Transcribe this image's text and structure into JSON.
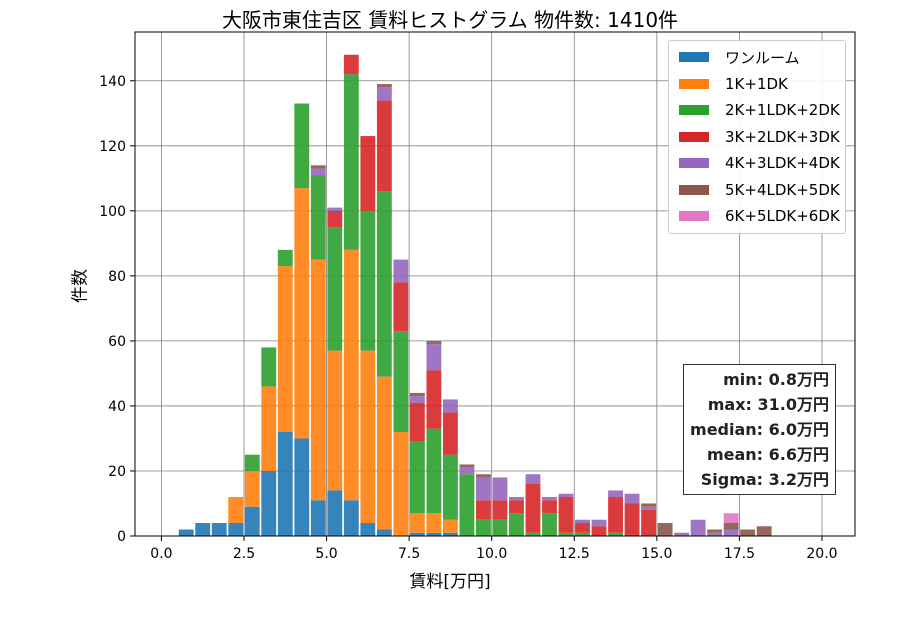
{
  "chart_data": {
    "type": "bar",
    "stacked": true,
    "title": "大阪市東住吉区 賃料ヒストグラム  物件数: 1410件",
    "xlabel": "賃料[万円]",
    "ylabel": "件数",
    "xlim": [
      -0.8,
      21.0
    ],
    "ylim": [
      0,
      155
    ],
    "xticks": [
      "0.0",
      "2.5",
      "5.0",
      "7.5",
      "10.0",
      "12.5",
      "15.0",
      "17.5",
      "20.0"
    ],
    "yticks": [
      "0",
      "20",
      "40",
      "60",
      "80",
      "100",
      "120",
      "140"
    ],
    "grid": true,
    "legend_placement": "top-right",
    "bin_width": 0.5,
    "bin_starts": [
      0.5,
      1.0,
      1.5,
      2.0,
      2.5,
      3.0,
      3.5,
      4.0,
      4.5,
      5.0,
      5.5,
      6.0,
      6.5,
      7.0,
      7.5,
      8.0,
      8.5,
      9.0,
      9.5,
      10.0,
      10.5,
      11.0,
      11.5,
      12.0,
      12.5,
      13.0,
      13.5,
      14.0,
      14.5,
      15.0,
      15.5,
      16.0,
      16.5,
      17.0,
      17.5,
      18.0
    ],
    "series": [
      {
        "name": "ワンルーム",
        "color": "#1f77b4",
        "values": [
          2,
          4,
          4,
          4,
          9,
          20,
          32,
          30,
          11,
          14,
          11,
          4,
          2,
          0,
          1,
          1,
          1,
          0,
          0,
          0,
          0,
          0,
          0,
          0,
          0,
          0,
          0,
          0,
          0,
          0,
          0,
          0,
          0,
          0,
          0,
          0
        ]
      },
      {
        "name": "1K+1DK",
        "color": "#ff7f0e",
        "values": [
          0,
          0,
          0,
          8,
          11,
          26,
          51,
          77,
          74,
          43,
          77,
          53,
          47,
          32,
          6,
          6,
          4,
          0,
          0,
          0,
          0,
          0,
          0,
          0,
          0,
          0,
          0,
          0,
          0,
          0,
          0,
          0,
          0,
          0,
          0,
          0
        ]
      },
      {
        "name": "2K+1LDK+2DK",
        "color": "#2ca02c",
        "values": [
          0,
          0,
          0,
          0,
          5,
          12,
          5,
          26,
          26,
          38,
          54,
          43,
          57,
          31,
          22,
          26,
          20,
          19,
          5,
          5,
          7,
          1,
          7,
          1,
          1,
          0,
          1,
          0,
          0,
          0,
          0,
          0,
          0,
          0,
          0,
          0
        ]
      },
      {
        "name": "3K+2LDK+3DK",
        "color": "#d62728",
        "values": [
          0,
          0,
          0,
          0,
          0,
          0,
          0,
          0,
          0,
          5,
          6,
          23,
          28,
          15,
          12,
          18,
          13,
          0,
          6,
          6,
          4,
          15,
          4,
          11,
          3,
          3,
          11,
          10,
          8,
          0,
          0,
          0,
          0,
          0,
          0,
          0
        ]
      },
      {
        "name": "4K+3LDK+4DK",
        "color": "#9467bd",
        "values": [
          0,
          0,
          0,
          0,
          0,
          0,
          0,
          0,
          2,
          1,
          0,
          0,
          4,
          7,
          2,
          8,
          4,
          2,
          7,
          7,
          1,
          3,
          1,
          1,
          1,
          2,
          2,
          3,
          1,
          0,
          1,
          5,
          1,
          2,
          0,
          0
        ]
      },
      {
        "name": "5K+4LDK+5DK",
        "color": "#8c564b",
        "values": [
          0,
          0,
          0,
          0,
          0,
          0,
          0,
          0,
          1,
          0,
          0,
          0,
          1,
          0,
          1,
          1,
          0,
          1,
          1,
          0,
          0,
          0,
          0,
          0,
          0,
          0,
          0,
          0,
          1,
          4,
          0,
          0,
          1,
          2,
          2,
          3
        ]
      },
      {
        "name": "6K+5LDK+6DK",
        "color": "#e377c2",
        "values": [
          0,
          0,
          0,
          0,
          0,
          0,
          0,
          0,
          0,
          0,
          0,
          0,
          0,
          0,
          0,
          0,
          0,
          0,
          0,
          0,
          0,
          0,
          0,
          0,
          0,
          0,
          0,
          0,
          0,
          0,
          0,
          0,
          0,
          3,
          0,
          0
        ]
      }
    ],
    "stats": [
      "min: 0.8万円",
      "max: 31.0万円",
      "median: 6.0万円",
      "mean: 6.6万円",
      "Sigma: 3.2万円"
    ]
  }
}
